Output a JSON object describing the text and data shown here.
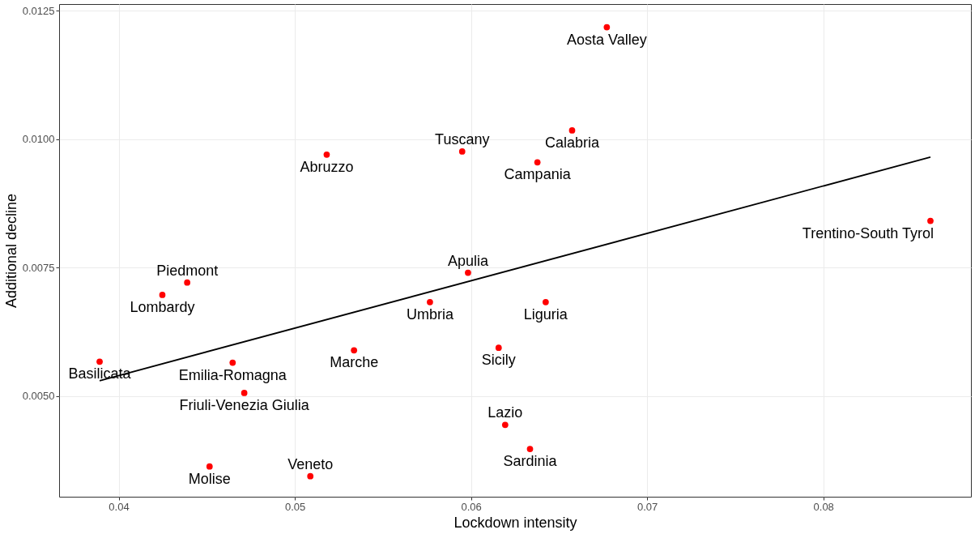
{
  "chart_data": {
    "type": "scatter",
    "xlabel": "Lockdown intensity",
    "ylabel": "Additional decline",
    "xlim": [
      0.03662,
      0.08838
    ],
    "ylim": [
      0.003041,
      0.01263
    ],
    "xticks": [
      0.04,
      0.05,
      0.06,
      0.07,
      0.08
    ],
    "yticks": [
      {
        "value": 0.005,
        "label": "0.0050"
      },
      {
        "value": 0.0075,
        "label": "0.0075"
      },
      {
        "value": 0.01,
        "label": "0.0100"
      },
      {
        "value": 0.0125,
        "label": "0.0125"
      }
    ],
    "grid": true,
    "series": [
      {
        "marker": "circle",
        "color": "#ff0000",
        "x": [
          0.06771,
          0.06574,
          0.06377,
          0.0595,
          0.05181,
          0.08608,
          0.05983,
          0.04389,
          0.04248,
          0.05767,
          0.06424,
          0.05336,
          0.06157,
          0.03892,
          0.04647,
          0.04713,
          0.06194,
          0.06335,
          0.04516,
          0.05088
        ],
        "values": [
          0.01218,
          0.01017,
          0.00955,
          0.00976,
          0.0097,
          0.00841,
          0.0074,
          0.00721,
          0.00697,
          0.00683,
          0.00683,
          0.00589,
          0.00594,
          0.00567,
          0.00565,
          0.00506,
          0.00444,
          0.00397,
          0.00363,
          0.00344
        ],
        "value_labels": [
          "Aosta Valley",
          "Calabria",
          "Campania",
          "Tuscany",
          "Abruzzo",
          "Trentino-South Tyrol",
          "Apulia",
          "Piedmont",
          "Lombardy",
          "Umbria",
          "Liguria",
          "Marche",
          "Sicily",
          "Basilicata",
          "Emilia-Romagna",
          "Friuli-Venezia Giulia",
          "Lazio",
          "Sardinia",
          "Molise",
          "Veneto"
        ]
      },
      {
        "type": "line",
        "color": "#000000",
        "x": [
          0.03892,
          0.08608
        ],
        "values": [
          0.0053,
          0.00965
        ]
      }
    ]
  }
}
